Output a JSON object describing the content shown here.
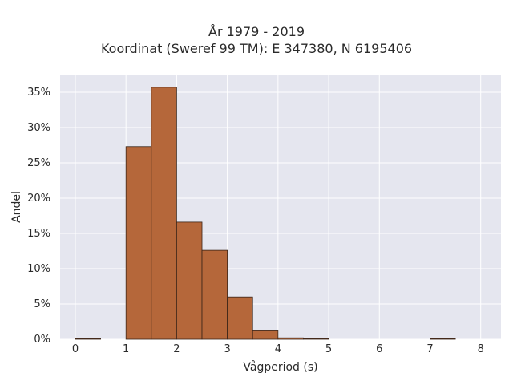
{
  "chart_data": {
    "type": "bar",
    "title_line1": "År 1979 - 2019",
    "title_line2": "Koordinat (Sweref 99 TM): E 347380, N 6195406",
    "xlabel": "Vågperiod (s)",
    "ylabel": "Andel",
    "xlim": [
      -0.3,
      8.4
    ],
    "ylim": [
      0,
      37.5
    ],
    "xticks": [
      0,
      1,
      2,
      3,
      4,
      5,
      6,
      7,
      8
    ],
    "yticks": [
      0,
      5,
      10,
      15,
      20,
      25,
      30,
      35
    ],
    "ytick_labels": [
      "0%",
      "5%",
      "10%",
      "15%",
      "20%",
      "25%",
      "30%",
      "35%"
    ],
    "bin_width": 0.5,
    "bins": [
      {
        "start": 0.0,
        "value": 0.1
      },
      {
        "start": 1.0,
        "value": 27.3
      },
      {
        "start": 1.5,
        "value": 35.7
      },
      {
        "start": 2.0,
        "value": 16.6
      },
      {
        "start": 2.5,
        "value": 12.6
      },
      {
        "start": 3.0,
        "value": 6.0
      },
      {
        "start": 3.5,
        "value": 1.2
      },
      {
        "start": 4.0,
        "value": 0.2
      },
      {
        "start": 4.5,
        "value": 0.1
      },
      {
        "start": 7.0,
        "value": 0.1
      }
    ],
    "bar_color": "#b5673a",
    "bar_edge_color": "#3a2418",
    "plot_background": "#e5e6ef",
    "grid_color": "#ffffff",
    "grid": true
  }
}
